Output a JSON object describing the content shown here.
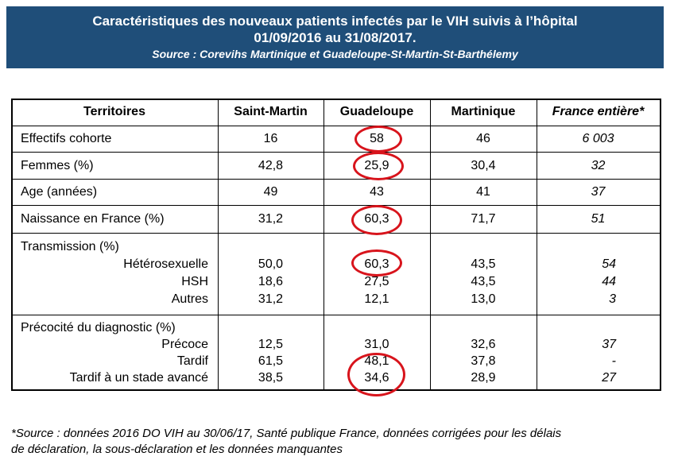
{
  "header": {
    "title_line1": "Caractéristiques des nouveaux patients infectés par le VIH suivis à l’hôpital",
    "title_line2": "01/09/2016 au 31/08/2017.",
    "source": "Source : Corevihs Martinique et Guadeloupe-St-Martin-St-Barthélemy"
  },
  "table": {
    "columns": [
      "Territoires",
      "Saint-Martin",
      "Guadeloupe",
      "Martinique",
      "France entière*"
    ],
    "rows": [
      {
        "label": "Effectifs cohorte",
        "values": [
          "16",
          "58",
          "46",
          "6 003"
        ]
      },
      {
        "label": "Femmes (%)",
        "values": [
          "42,8",
          "25,9",
          "30,4",
          "32"
        ]
      },
      {
        "label": "Age (années)",
        "values": [
          "49",
          "43",
          "41",
          "37"
        ]
      },
      {
        "label": "Naissance en France (%)",
        "values": [
          "31,2",
          "60,3",
          "71,7",
          "51"
        ]
      }
    ],
    "transmission": {
      "title": "Transmission (%)",
      "rows": [
        {
          "label": "Hétérosexuelle",
          "values": [
            "50,0",
            "60,3",
            "43,5",
            "54"
          ]
        },
        {
          "label": "HSH",
          "values": [
            "18,6",
            "27,5",
            "43,5",
            "44"
          ]
        },
        {
          "label": "Autres",
          "values": [
            "31,2",
            "12,1",
            "13,0",
            "3"
          ]
        }
      ]
    },
    "precocite": {
      "title": "Précocité du diagnostic (%)",
      "rows": [
        {
          "label": "Précoce",
          "values": [
            "12,5",
            "31,0",
            "32,6",
            "37"
          ]
        },
        {
          "label": "Tardif",
          "values": [
            "61,5",
            "48,1",
            "37,8",
            "-"
          ]
        },
        {
          "label": "Tardif à un stade avancé",
          "values": [
            "38,5",
            "34,6",
            "28,9",
            "27"
          ]
        }
      ]
    }
  },
  "footnote": {
    "line1": "*Source : données 2016 DO VIH au 30/06/17, Santé publique France, données corrigées pour les délais",
    "line2": "de déclaration, la sous-déclaration et les données manquantes"
  },
  "colors": {
    "header_bg": "#1f4e79",
    "highlight_ring": "#d8141c"
  }
}
